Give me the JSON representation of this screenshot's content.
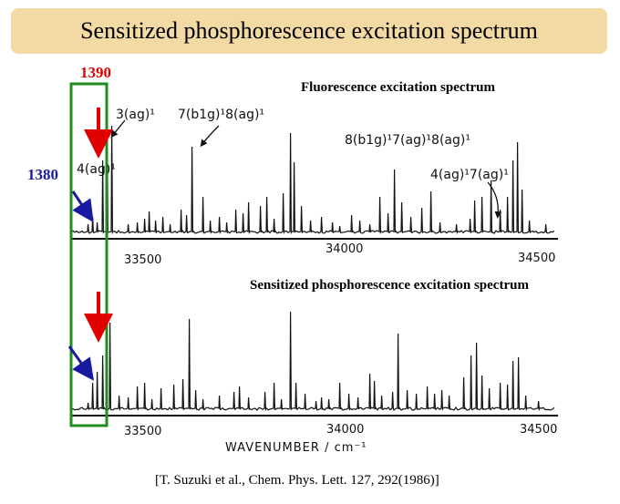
{
  "title": "Sensitized phosphorescence excitation spectrum",
  "label_1390": "1390",
  "label_1380": "1380",
  "fluorescence_label": "Fluorescence excitation spectrum",
  "sensitized_label": "Sensitized phosphorescence excitation spectrum",
  "annotations": {
    "a1": "3(ag)¹",
    "a2": "7(b1g)¹8(ag)¹",
    "a3": "8(b1g)¹7(ag)¹8(ag)¹",
    "a4": "4(ag)¹",
    "a5": "4(ag)¹7(ag)¹"
  },
  "top_ticks": [
    "33500",
    "34000",
    "34500"
  ],
  "bottom_ticks": [
    "33500",
    "34000",
    "34500"
  ],
  "xlabel": "WAVENUMBER   / cm⁻¹",
  "citation": "[T. Suzuki et al., Chem. Phys. Lett. 127, 292(1986)]",
  "colors": {
    "title_bg": "#f3d9a4",
    "highlight_box": "#1e8c1e",
    "red_arrow": "#e00000",
    "blue_arrow": "#1a1aa0"
  }
}
